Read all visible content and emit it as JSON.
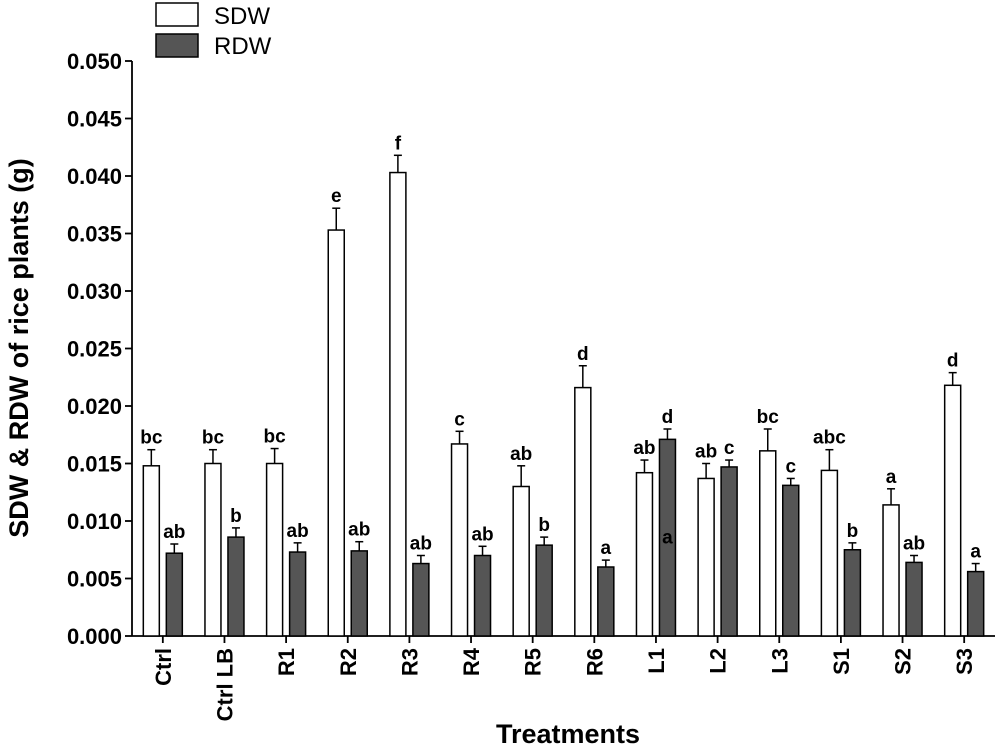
{
  "chart_data": {
    "type": "bar",
    "title": "",
    "xlabel": "Treatments",
    "ylabel": "SDW & RDW of rice plants (g)",
    "ylim": [
      0,
      0.05
    ],
    "yticks": [
      "0.000",
      "0.005",
      "0.010",
      "0.015",
      "0.020",
      "0.025",
      "0.030",
      "0.035",
      "0.040",
      "0.045",
      "0.050"
    ],
    "categories": [
      "Ctrl",
      "Ctrl LB",
      "R1",
      "R2",
      "R3",
      "R4",
      "R5",
      "R6",
      "L1",
      "L2",
      "L3",
      "S1",
      "S2",
      "S3"
    ],
    "legend_position": "top-left",
    "series": [
      {
        "name": "SDW",
        "fill": "#ffffff",
        "values": [
          0.0148,
          0.015,
          0.015,
          0.0353,
          0.0403,
          0.0167,
          0.013,
          0.0216,
          0.0142,
          0.0137,
          0.0161,
          0.0144,
          0.0114,
          0.0218
        ],
        "errors": [
          0.0014,
          0.0012,
          0.0013,
          0.0019,
          0.0015,
          0.0011,
          0.0018,
          0.0019,
          0.0011,
          0.0013,
          0.0019,
          0.0018,
          0.0014,
          0.0011
        ],
        "letters": [
          "bc",
          "bc",
          "bc",
          "e",
          "f",
          "c",
          "ab",
          "d",
          "ab",
          "ab",
          "bc",
          "abc",
          "a",
          "d"
        ]
      },
      {
        "name": "RDW",
        "fill": "#555555",
        "values": [
          0.0072,
          0.0086,
          0.0073,
          0.0074,
          0.0063,
          0.007,
          0.0079,
          0.006,
          0.0171,
          0.0147,
          0.0131,
          0.0075,
          0.0064,
          0.0056
        ],
        "errors": [
          0.0008,
          0.0008,
          0.0008,
          0.0008,
          0.0007,
          0.0008,
          0.0007,
          0.0006,
          0.0009,
          0.0006,
          0.0006,
          0.0006,
          0.0006,
          0.0007
        ],
        "letters": [
          "ab",
          "b",
          "ab",
          "ab",
          "ab",
          "ab",
          "b",
          "a",
          "d",
          "c",
          "c",
          "b",
          "ab",
          "a"
        ]
      }
    ],
    "annotations": [
      {
        "category": "L1",
        "series": "RDW",
        "text": "a"
      }
    ]
  }
}
